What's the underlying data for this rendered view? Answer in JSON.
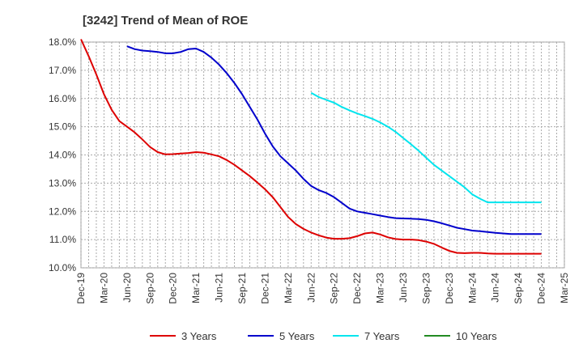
{
  "chart_data": {
    "type": "line",
    "title": "[3242]  Trend of Mean of ROE",
    "xlabel": "",
    "ylabel": "",
    "x_tick_labels": [
      "Dec-19",
      "Mar-20",
      "Jun-20",
      "Sep-20",
      "Dec-20",
      "Mar-21",
      "Jun-21",
      "Sep-21",
      "Dec-21",
      "Mar-22",
      "Jun-22",
      "Sep-22",
      "Dec-22",
      "Mar-23",
      "Jun-23",
      "Sep-23",
      "Dec-23",
      "Mar-24",
      "Jun-24",
      "Sep-24",
      "Dec-24",
      "Mar-25"
    ],
    "y_tick_labels": [
      "10.0%",
      "11.0%",
      "12.0%",
      "13.0%",
      "14.0%",
      "15.0%",
      "16.0%",
      "17.0%",
      "18.0%"
    ],
    "ylim": [
      10.0,
      18.0
    ],
    "grid": true,
    "legend_position": "bottom",
    "series": [
      {
        "name": "3 Years",
        "color": "#dd0000",
        "x": [
          "Dec-19",
          "Jan-20",
          "Feb-20",
          "Mar-20",
          "Apr-20",
          "May-20",
          "Jun-20",
          "Jul-20",
          "Aug-20",
          "Sep-20",
          "Oct-20",
          "Nov-20",
          "Dec-20",
          "Jan-21",
          "Feb-21",
          "Mar-21",
          "Apr-21",
          "May-21",
          "Jun-21",
          "Jul-21",
          "Aug-21",
          "Sep-21",
          "Oct-21",
          "Nov-21",
          "Dec-21",
          "Jan-22",
          "Feb-22",
          "Mar-22",
          "Apr-22",
          "May-22",
          "Jun-22",
          "Jul-22",
          "Aug-22",
          "Sep-22",
          "Oct-22",
          "Nov-22",
          "Dec-22",
          "Jan-23",
          "Feb-23",
          "Mar-23",
          "Apr-23",
          "May-23",
          "Jun-23",
          "Jul-23",
          "Aug-23",
          "Sep-23",
          "Oct-23",
          "Nov-23",
          "Dec-23",
          "Jan-24",
          "Feb-24",
          "Mar-24",
          "Apr-24",
          "May-24",
          "Jun-24",
          "Jul-24",
          "Aug-24",
          "Sep-24",
          "Oct-24",
          "Nov-24",
          "Dec-24"
        ],
        "values": [
          18.1,
          17.5,
          16.85,
          16.15,
          15.6,
          15.2,
          15.0,
          14.8,
          14.55,
          14.28,
          14.1,
          14.02,
          14.03,
          14.05,
          14.07,
          14.1,
          14.08,
          14.02,
          13.95,
          13.82,
          13.65,
          13.45,
          13.25,
          13.02,
          12.78,
          12.5,
          12.15,
          11.8,
          11.55,
          11.38,
          11.25,
          11.15,
          11.07,
          11.03,
          11.03,
          11.05,
          11.12,
          11.22,
          11.25,
          11.18,
          11.08,
          11.02,
          11.0,
          11.0,
          10.98,
          10.93,
          10.85,
          10.72,
          10.6,
          10.53,
          10.52,
          10.53,
          10.53,
          10.51,
          10.5,
          10.5,
          10.5,
          10.5,
          10.5,
          10.5,
          10.5
        ]
      },
      {
        "name": "5 Years",
        "color": "#0000cc",
        "x": [
          "Jun-20",
          "Jul-20",
          "Aug-20",
          "Sep-20",
          "Oct-20",
          "Nov-20",
          "Dec-20",
          "Jan-21",
          "Feb-21",
          "Mar-21",
          "Apr-21",
          "May-21",
          "Jun-21",
          "Jul-21",
          "Aug-21",
          "Sep-21",
          "Oct-21",
          "Nov-21",
          "Dec-21",
          "Jan-22",
          "Feb-22",
          "Mar-22",
          "Apr-22",
          "May-22",
          "Jun-22",
          "Jul-22",
          "Aug-22",
          "Sep-22",
          "Oct-22",
          "Nov-22",
          "Dec-22",
          "Jan-23",
          "Feb-23",
          "Mar-23",
          "Apr-23",
          "May-23",
          "Jun-23",
          "Jul-23",
          "Aug-23",
          "Sep-23",
          "Oct-23",
          "Nov-23",
          "Dec-23",
          "Jan-24",
          "Feb-24",
          "Mar-24",
          "Apr-24",
          "May-24",
          "Jun-24",
          "Jul-24",
          "Aug-24",
          "Sep-24",
          "Oct-24",
          "Nov-24",
          "Dec-24"
        ],
        "values": [
          17.85,
          17.75,
          17.7,
          17.68,
          17.65,
          17.6,
          17.6,
          17.65,
          17.75,
          17.77,
          17.65,
          17.45,
          17.2,
          16.9,
          16.55,
          16.15,
          15.7,
          15.25,
          14.75,
          14.3,
          13.95,
          13.7,
          13.45,
          13.15,
          12.9,
          12.75,
          12.65,
          12.5,
          12.3,
          12.1,
          12.0,
          11.95,
          11.9,
          11.85,
          11.8,
          11.76,
          11.75,
          11.74,
          11.73,
          11.7,
          11.65,
          11.58,
          11.5,
          11.42,
          11.37,
          11.32,
          11.3,
          11.27,
          11.24,
          11.22,
          11.2,
          11.2,
          11.2,
          11.2,
          11.2
        ]
      },
      {
        "name": "7 Years",
        "color": "#00e5ee",
        "x": [
          "Jun-22",
          "Jul-22",
          "Aug-22",
          "Sep-22",
          "Oct-22",
          "Nov-22",
          "Dec-22",
          "Jan-23",
          "Feb-23",
          "Mar-23",
          "Apr-23",
          "May-23",
          "Jun-23",
          "Jul-23",
          "Aug-23",
          "Sep-23",
          "Oct-23",
          "Nov-23",
          "Dec-23",
          "Jan-24",
          "Feb-24",
          "Mar-24",
          "Apr-24",
          "May-24",
          "Jun-24",
          "Jul-24",
          "Aug-24",
          "Sep-24",
          "Oct-24",
          "Nov-24",
          "Dec-24"
        ],
        "values": [
          16.2,
          16.05,
          15.95,
          15.85,
          15.7,
          15.58,
          15.47,
          15.38,
          15.28,
          15.15,
          15.0,
          14.82,
          14.6,
          14.38,
          14.15,
          13.9,
          13.65,
          13.45,
          13.25,
          13.05,
          12.85,
          12.6,
          12.45,
          12.32,
          12.32,
          12.32,
          12.32,
          12.32,
          12.32,
          12.32,
          12.32
        ]
      },
      {
        "name": "10 Years",
        "color": "#228B22",
        "x": [],
        "values": []
      }
    ]
  }
}
